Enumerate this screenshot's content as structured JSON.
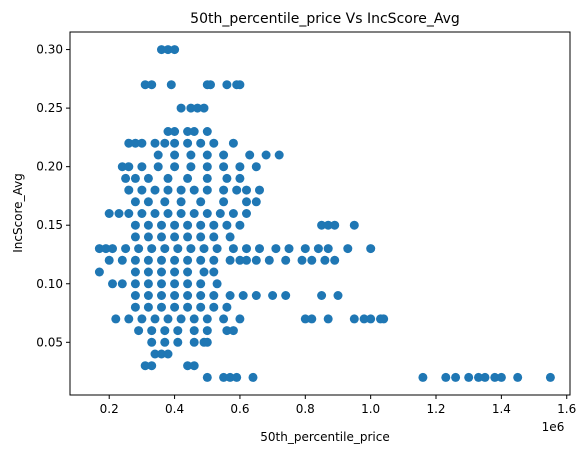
{
  "chart_data": {
    "type": "scatter",
    "title": "50th_percentile_price Vs IncScore_Avg",
    "xlabel": "50th_percentile_price",
    "ylabel": "IncScore_Avg",
    "x_offset_label": "1e6",
    "x_scale": 1000000,
    "xlim": [
      0.08,
      1.61
    ],
    "ylim": [
      0.005,
      0.315
    ],
    "xticks": [
      "0.2",
      "0.4",
      "0.6",
      "0.8",
      "1.0",
      "1.2",
      "1.4",
      "1.6"
    ],
    "yticks": [
      "0.05",
      "0.10",
      "0.15",
      "0.20",
      "0.25",
      "0.30"
    ],
    "grid": false,
    "marker_color": "#1f77b4",
    "series": [
      {
        "points": [
          [
            0.36,
            0.3
          ],
          [
            0.38,
            0.3
          ],
          [
            0.4,
            0.3
          ],
          [
            0.31,
            0.27
          ],
          [
            0.33,
            0.27
          ],
          [
            0.39,
            0.27
          ],
          [
            0.5,
            0.27
          ],
          [
            0.51,
            0.27
          ],
          [
            0.56,
            0.27
          ],
          [
            0.59,
            0.27
          ],
          [
            0.6,
            0.27
          ],
          [
            0.42,
            0.25
          ],
          [
            0.45,
            0.25
          ],
          [
            0.47,
            0.25
          ],
          [
            0.49,
            0.25
          ],
          [
            0.38,
            0.23
          ],
          [
            0.4,
            0.23
          ],
          [
            0.44,
            0.23
          ],
          [
            0.46,
            0.23
          ],
          [
            0.5,
            0.23
          ],
          [
            0.26,
            0.22
          ],
          [
            0.28,
            0.22
          ],
          [
            0.3,
            0.22
          ],
          [
            0.34,
            0.22
          ],
          [
            0.37,
            0.22
          ],
          [
            0.4,
            0.22
          ],
          [
            0.44,
            0.22
          ],
          [
            0.48,
            0.22
          ],
          [
            0.52,
            0.22
          ],
          [
            0.58,
            0.22
          ],
          [
            0.35,
            0.21
          ],
          [
            0.4,
            0.21
          ],
          [
            0.45,
            0.21
          ],
          [
            0.5,
            0.21
          ],
          [
            0.55,
            0.21
          ],
          [
            0.63,
            0.21
          ],
          [
            0.68,
            0.21
          ],
          [
            0.72,
            0.21
          ],
          [
            0.24,
            0.2
          ],
          [
            0.26,
            0.2
          ],
          [
            0.3,
            0.2
          ],
          [
            0.35,
            0.2
          ],
          [
            0.4,
            0.2
          ],
          [
            0.45,
            0.2
          ],
          [
            0.5,
            0.2
          ],
          [
            0.55,
            0.2
          ],
          [
            0.6,
            0.2
          ],
          [
            0.65,
            0.2
          ],
          [
            0.25,
            0.19
          ],
          [
            0.28,
            0.19
          ],
          [
            0.32,
            0.19
          ],
          [
            0.38,
            0.19
          ],
          [
            0.44,
            0.19
          ],
          [
            0.5,
            0.19
          ],
          [
            0.56,
            0.19
          ],
          [
            0.6,
            0.19
          ],
          [
            0.26,
            0.18
          ],
          [
            0.3,
            0.18
          ],
          [
            0.34,
            0.18
          ],
          [
            0.38,
            0.18
          ],
          [
            0.42,
            0.18
          ],
          [
            0.46,
            0.18
          ],
          [
            0.5,
            0.18
          ],
          [
            0.55,
            0.18
          ],
          [
            0.59,
            0.18
          ],
          [
            0.62,
            0.18
          ],
          [
            0.66,
            0.18
          ],
          [
            0.28,
            0.17
          ],
          [
            0.32,
            0.17
          ],
          [
            0.37,
            0.17
          ],
          [
            0.42,
            0.17
          ],
          [
            0.48,
            0.17
          ],
          [
            0.55,
            0.17
          ],
          [
            0.62,
            0.17
          ],
          [
            0.65,
            0.17
          ],
          [
            0.2,
            0.16
          ],
          [
            0.23,
            0.16
          ],
          [
            0.26,
            0.16
          ],
          [
            0.3,
            0.16
          ],
          [
            0.34,
            0.16
          ],
          [
            0.38,
            0.16
          ],
          [
            0.42,
            0.16
          ],
          [
            0.46,
            0.16
          ],
          [
            0.5,
            0.16
          ],
          [
            0.54,
            0.16
          ],
          [
            0.58,
            0.16
          ],
          [
            0.62,
            0.16
          ],
          [
            0.28,
            0.15
          ],
          [
            0.32,
            0.15
          ],
          [
            0.36,
            0.15
          ],
          [
            0.4,
            0.15
          ],
          [
            0.44,
            0.15
          ],
          [
            0.48,
            0.15
          ],
          [
            0.52,
            0.15
          ],
          [
            0.56,
            0.15
          ],
          [
            0.6,
            0.15
          ],
          [
            0.85,
            0.15
          ],
          [
            0.87,
            0.15
          ],
          [
            0.89,
            0.15
          ],
          [
            0.95,
            0.15
          ],
          [
            0.28,
            0.14
          ],
          [
            0.32,
            0.14
          ],
          [
            0.36,
            0.14
          ],
          [
            0.4,
            0.14
          ],
          [
            0.44,
            0.14
          ],
          [
            0.48,
            0.14
          ],
          [
            0.52,
            0.14
          ],
          [
            0.57,
            0.14
          ],
          [
            0.17,
            0.13
          ],
          [
            0.19,
            0.13
          ],
          [
            0.21,
            0.13
          ],
          [
            0.25,
            0.13
          ],
          [
            0.29,
            0.13
          ],
          [
            0.33,
            0.13
          ],
          [
            0.37,
            0.13
          ],
          [
            0.41,
            0.13
          ],
          [
            0.45,
            0.13
          ],
          [
            0.49,
            0.13
          ],
          [
            0.53,
            0.13
          ],
          [
            0.58,
            0.13
          ],
          [
            0.62,
            0.13
          ],
          [
            0.66,
            0.13
          ],
          [
            0.71,
            0.13
          ],
          [
            0.75,
            0.13
          ],
          [
            0.8,
            0.13
          ],
          [
            0.84,
            0.13
          ],
          [
            0.87,
            0.13
          ],
          [
            0.93,
            0.13
          ],
          [
            1.0,
            0.13
          ],
          [
            0.2,
            0.12
          ],
          [
            0.24,
            0.12
          ],
          [
            0.28,
            0.12
          ],
          [
            0.32,
            0.12
          ],
          [
            0.36,
            0.12
          ],
          [
            0.4,
            0.12
          ],
          [
            0.44,
            0.12
          ],
          [
            0.48,
            0.12
          ],
          [
            0.52,
            0.12
          ],
          [
            0.57,
            0.12
          ],
          [
            0.6,
            0.12
          ],
          [
            0.62,
            0.12
          ],
          [
            0.65,
            0.12
          ],
          [
            0.69,
            0.12
          ],
          [
            0.74,
            0.12
          ],
          [
            0.79,
            0.12
          ],
          [
            0.82,
            0.12
          ],
          [
            0.86,
            0.12
          ],
          [
            0.89,
            0.12
          ],
          [
            0.17,
            0.11
          ],
          [
            0.28,
            0.11
          ],
          [
            0.32,
            0.11
          ],
          [
            0.36,
            0.11
          ],
          [
            0.4,
            0.11
          ],
          [
            0.44,
            0.11
          ],
          [
            0.49,
            0.11
          ],
          [
            0.52,
            0.11
          ],
          [
            0.21,
            0.1
          ],
          [
            0.24,
            0.1
          ],
          [
            0.28,
            0.1
          ],
          [
            0.32,
            0.1
          ],
          [
            0.36,
            0.1
          ],
          [
            0.4,
            0.1
          ],
          [
            0.44,
            0.1
          ],
          [
            0.48,
            0.1
          ],
          [
            0.53,
            0.1
          ],
          [
            0.28,
            0.09
          ],
          [
            0.32,
            0.09
          ],
          [
            0.36,
            0.09
          ],
          [
            0.4,
            0.09
          ],
          [
            0.44,
            0.09
          ],
          [
            0.48,
            0.09
          ],
          [
            0.52,
            0.09
          ],
          [
            0.57,
            0.09
          ],
          [
            0.61,
            0.09
          ],
          [
            0.65,
            0.09
          ],
          [
            0.7,
            0.09
          ],
          [
            0.74,
            0.09
          ],
          [
            0.85,
            0.09
          ],
          [
            0.9,
            0.09
          ],
          [
            0.28,
            0.08
          ],
          [
            0.32,
            0.08
          ],
          [
            0.36,
            0.08
          ],
          [
            0.4,
            0.08
          ],
          [
            0.44,
            0.08
          ],
          [
            0.48,
            0.08
          ],
          [
            0.52,
            0.08
          ],
          [
            0.56,
            0.08
          ],
          [
            0.22,
            0.07
          ],
          [
            0.26,
            0.07
          ],
          [
            0.3,
            0.07
          ],
          [
            0.34,
            0.07
          ],
          [
            0.38,
            0.07
          ],
          [
            0.42,
            0.07
          ],
          [
            0.46,
            0.07
          ],
          [
            0.5,
            0.07
          ],
          [
            0.55,
            0.07
          ],
          [
            0.6,
            0.07
          ],
          [
            0.8,
            0.07
          ],
          [
            0.82,
            0.07
          ],
          [
            0.87,
            0.07
          ],
          [
            0.95,
            0.07
          ],
          [
            0.98,
            0.07
          ],
          [
            1.0,
            0.07
          ],
          [
            1.03,
            0.07
          ],
          [
            1.04,
            0.07
          ],
          [
            0.29,
            0.06
          ],
          [
            0.33,
            0.06
          ],
          [
            0.37,
            0.06
          ],
          [
            0.41,
            0.06
          ],
          [
            0.46,
            0.06
          ],
          [
            0.5,
            0.06
          ],
          [
            0.56,
            0.06
          ],
          [
            0.58,
            0.06
          ],
          [
            0.33,
            0.05
          ],
          [
            0.37,
            0.05
          ],
          [
            0.41,
            0.05
          ],
          [
            0.46,
            0.05
          ],
          [
            0.49,
            0.05
          ],
          [
            0.5,
            0.05
          ],
          [
            0.34,
            0.04
          ],
          [
            0.36,
            0.04
          ],
          [
            0.38,
            0.04
          ],
          [
            0.31,
            0.03
          ],
          [
            0.33,
            0.03
          ],
          [
            0.44,
            0.03
          ],
          [
            0.46,
            0.03
          ],
          [
            0.5,
            0.02
          ],
          [
            0.55,
            0.02
          ],
          [
            0.57,
            0.02
          ],
          [
            0.59,
            0.02
          ],
          [
            0.64,
            0.02
          ],
          [
            1.16,
            0.02
          ],
          [
            1.23,
            0.02
          ],
          [
            1.26,
            0.02
          ],
          [
            1.3,
            0.02
          ],
          [
            1.33,
            0.02
          ],
          [
            1.35,
            0.02
          ],
          [
            1.38,
            0.02
          ],
          [
            1.4,
            0.02
          ],
          [
            1.45,
            0.02
          ],
          [
            1.55,
            0.02
          ]
        ]
      }
    ]
  }
}
